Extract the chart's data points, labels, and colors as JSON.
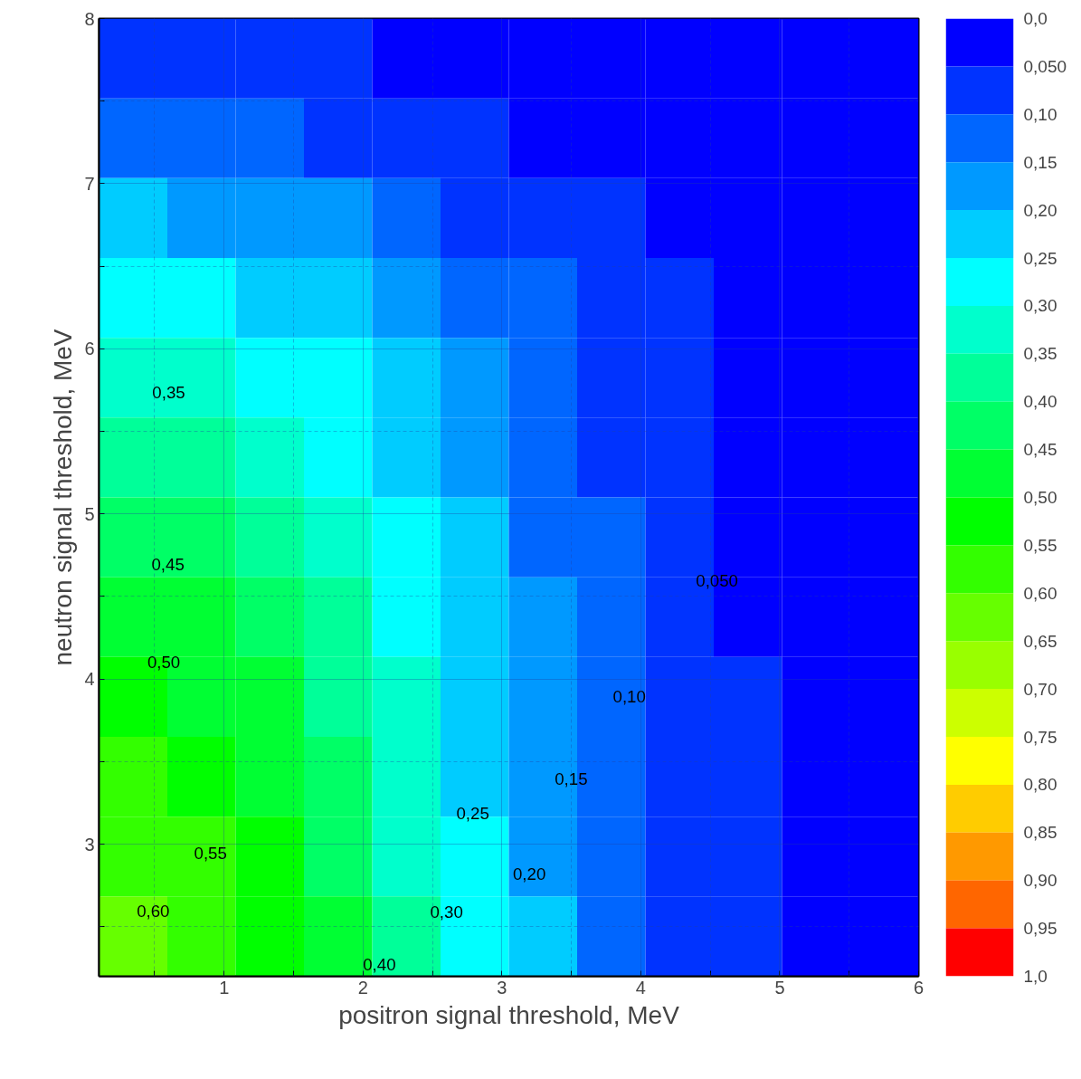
{
  "chart_data": {
    "type": "heatmap",
    "xlabel": "positron signal threshold, MeV",
    "ylabel": "neutron signal threshold, MeV",
    "xlim": [
      0.1,
      6
    ],
    "ylim": [
      2.2,
      8
    ],
    "xticks": [
      {
        "value": 0.5,
        "label": null
      },
      1,
      {
        "value": 1.5,
        "label": null
      },
      2,
      {
        "value": 2.5,
        "label": null
      },
      3,
      {
        "value": 3.5,
        "label": null
      },
      4,
      {
        "value": 4.5,
        "label": null
      },
      5,
      {
        "value": 5.5,
        "label": null
      },
      6
    ],
    "yticks": [
      {
        "value": 2.5,
        "label": null
      },
      3,
      {
        "value": 3.5,
        "label": null
      },
      4,
      {
        "value": 4.5,
        "label": null
      },
      5,
      {
        "value": 5.5,
        "label": null
      },
      6,
      {
        "value": 6.5,
        "label": null
      },
      7,
      {
        "value": 7.5,
        "label": null
      },
      8
    ],
    "grid": true,
    "clim": [
      1,
      0
    ],
    "cticks": [
      {
        "value": 0,
        "label": "0,0"
      },
      {
        "value": 0.05,
        "label": "0,050"
      },
      {
        "value": 0.1,
        "label": "0,10"
      },
      {
        "value": 0.15,
        "label": "0,15"
      },
      {
        "value": 0.2,
        "label": "0,20"
      },
      {
        "value": 0.25,
        "label": "0,25"
      },
      {
        "value": 0.3,
        "label": "0,30"
      },
      {
        "value": 0.35,
        "label": "0,35"
      },
      {
        "value": 0.4,
        "label": "0,40"
      },
      {
        "value": 0.45,
        "label": "0,45"
      },
      {
        "value": 0.5,
        "label": "0,50"
      },
      {
        "value": 0.55,
        "label": "0,55"
      },
      {
        "value": 0.6,
        "label": "0,60"
      },
      {
        "value": 0.65,
        "label": "0,65"
      },
      {
        "value": 0.7,
        "label": "0,70"
      },
      {
        "value": 0.75,
        "label": "0,75"
      },
      {
        "value": 0.8,
        "label": "0,80"
      },
      {
        "value": 0.85,
        "label": "0,85"
      },
      {
        "value": 0.9,
        "label": "0,90"
      },
      {
        "value": 0.95,
        "label": "0,95"
      },
      {
        "value": 1,
        "label": "1,0"
      }
    ],
    "colors": [
      "#0000ff",
      "#0033ff",
      "#0066ff",
      "#0099ff",
      "#00ccff",
      "#00ffff",
      "#00ffcc",
      "#00ff99",
      "#00ff66",
      "#00ff33",
      "#00ff00",
      "#33ff00",
      "#66ff00",
      "#99ff00",
      "#ccff00",
      "#ffff00",
      "#ffcc00",
      "#ff9900",
      "#ff6600",
      "#ff0000"
    ],
    "cells": [
      [
        0.06,
        0.06,
        0.06,
        0.05,
        0.04,
        0.03,
        0.02,
        0.02,
        0.01,
        0.01,
        0.0,
        0.0
      ],
      [
        0.13,
        0.12,
        0.11,
        0.09,
        0.08,
        0.06,
        0.04,
        0.03,
        0.02,
        0.01,
        0.01,
        0.0
      ],
      [
        0.2,
        0.19,
        0.17,
        0.15,
        0.12,
        0.09,
        0.07,
        0.05,
        0.03,
        0.02,
        0.01,
        0.0
      ],
      [
        0.27,
        0.26,
        0.23,
        0.2,
        0.16,
        0.12,
        0.1,
        0.07,
        0.05,
        0.02,
        0.01,
        0.0
      ],
      [
        0.33,
        0.32,
        0.29,
        0.25,
        0.2,
        0.15,
        0.11,
        0.08,
        0.06,
        0.03,
        0.02,
        0.01
      ],
      [
        0.39,
        0.37,
        0.34,
        0.29,
        0.23,
        0.17,
        0.12,
        0.09,
        0.06,
        0.03,
        0.02,
        0.01
      ],
      [
        0.44,
        0.42,
        0.38,
        0.32,
        0.26,
        0.2,
        0.14,
        0.1,
        0.06,
        0.04,
        0.02,
        0.01
      ],
      [
        0.48,
        0.46,
        0.41,
        0.35,
        0.28,
        0.21,
        0.15,
        0.11,
        0.07,
        0.04,
        0.02,
        0.01
      ],
      [
        0.52,
        0.49,
        0.45,
        0.38,
        0.3,
        0.23,
        0.16,
        0.11,
        0.07,
        0.05,
        0.02,
        0.01
      ],
      [
        0.55,
        0.52,
        0.47,
        0.4,
        0.32,
        0.24,
        0.17,
        0.12,
        0.08,
        0.05,
        0.03,
        0.01
      ],
      [
        0.58,
        0.55,
        0.5,
        0.43,
        0.34,
        0.26,
        0.18,
        0.13,
        0.08,
        0.05,
        0.03,
        0.01
      ],
      [
        0.62,
        0.59,
        0.53,
        0.45,
        0.36,
        0.27,
        0.2,
        0.14,
        0.09,
        0.05,
        0.03,
        0.01
      ]
    ],
    "annotations": [
      "0,35",
      "0,45",
      "0,50",
      "0,55",
      "0,60",
      "0,40",
      "0,30",
      "0,25",
      "0,20",
      "0,15",
      "0,10",
      "0,050"
    ]
  }
}
